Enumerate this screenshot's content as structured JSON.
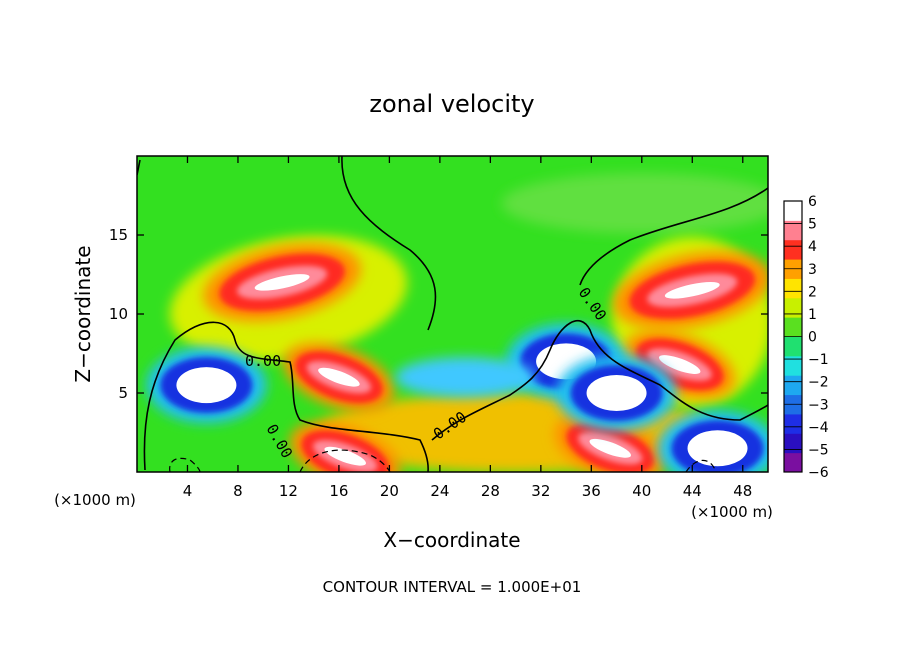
{
  "chart_data": {
    "type": "heatmap",
    "title": "zonal velocity",
    "xlabel": "X−coordinate",
    "ylabel": "Z−coordinate",
    "x_unit_left": "(×1000 m)",
    "x_unit_right": "(×1000 m)",
    "footer": "CONTOUR INTERVAL = 1.000E+01",
    "xlim": [
      0,
      50
    ],
    "ylim": [
      0,
      20
    ],
    "x_ticks": [
      4,
      8,
      12,
      16,
      20,
      24,
      28,
      32,
      36,
      40,
      44,
      48
    ],
    "y_ticks": [
      5,
      10,
      15
    ],
    "contour_labels": [
      "0.00",
      "0.00",
      "0.00",
      "0.00"
    ],
    "colorbar": {
      "range": [
        -6,
        6
      ],
      "tick_values": [
        6,
        5,
        4,
        3,
        2,
        1,
        0,
        -1,
        -2,
        -3,
        -4,
        -5,
        -6
      ],
      "tick_labels": [
        "6",
        "5",
        "4",
        "3",
        "2",
        "1",
        "0",
        "−1",
        "−2",
        "−3",
        "−4",
        "−5",
        "−6"
      ],
      "colors": [
        "#7a0fa0",
        "#2a0fc0",
        "#1e2ee6",
        "#1e6ee6",
        "#1ea8f0",
        "#20e0e0",
        "#20e070",
        "#5ae020",
        "#c8f000",
        "#ffe400",
        "#ffa000",
        "#ff3020",
        "#ff8090",
        "#ffffff"
      ]
    },
    "features": [
      {
        "kind": "positive-max",
        "x": 11.5,
        "z": 12.0,
        "value": 6
      },
      {
        "kind": "positive-max",
        "x": 44.0,
        "z": 11.5,
        "value": 6
      },
      {
        "kind": "positive-max",
        "x": 43.0,
        "z": 6.8,
        "value": 6
      },
      {
        "kind": "positive-max",
        "x": 16.0,
        "z": 6.0,
        "value": 6
      },
      {
        "kind": "positive-max",
        "x": 16.5,
        "z": 1.0,
        "value": 6
      },
      {
        "kind": "positive-max",
        "x": 37.5,
        "z": 1.5,
        "value": 6
      },
      {
        "kind": "negative-min",
        "x": 5.5,
        "z": 5.5,
        "value": -6
      },
      {
        "kind": "negative-min",
        "x": 34.0,
        "z": 7.0,
        "value": -6
      },
      {
        "kind": "negative-min",
        "x": 38.0,
        "z": 5.0,
        "value": -6
      },
      {
        "kind": "negative-min",
        "x": 46.0,
        "z": 1.5,
        "value": -6
      },
      {
        "kind": "weak-negative",
        "x": 26.0,
        "z": 6.0,
        "value": -2
      }
    ]
  }
}
